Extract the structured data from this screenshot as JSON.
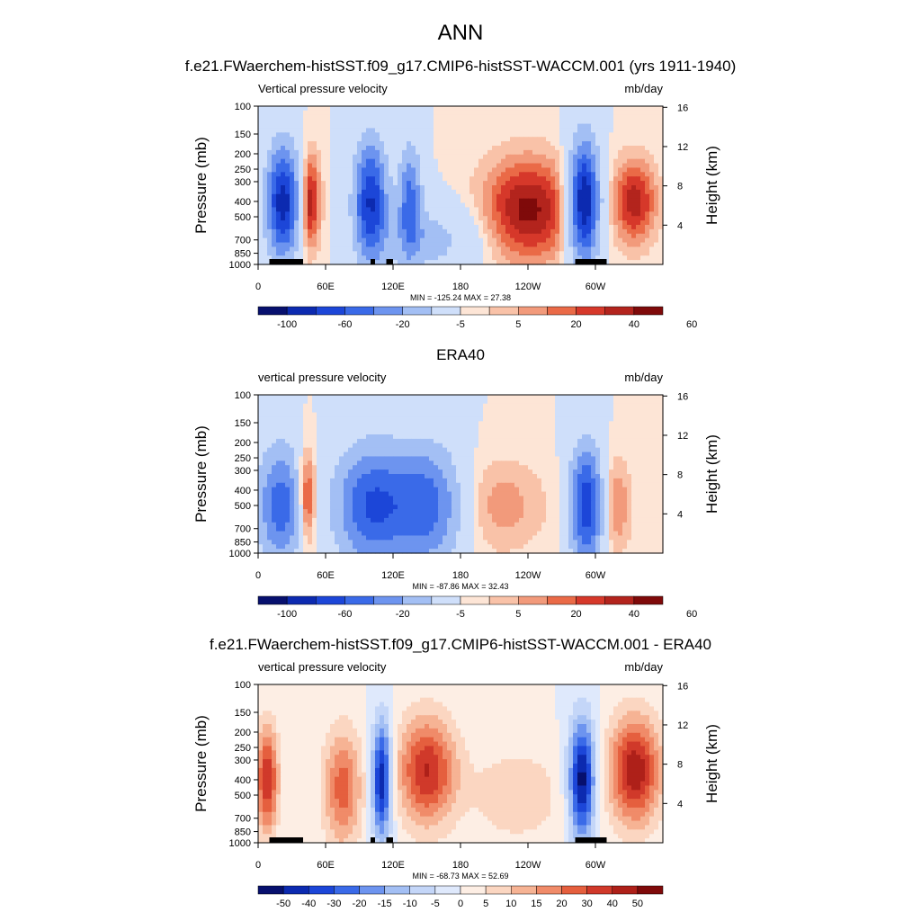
{
  "figure": {
    "title": "ANN",
    "colors": {
      "blue_red_14": [
        "#07106e",
        "#0c2ab0",
        "#1c46d8",
        "#3a6ae8",
        "#6d94ef",
        "#a3bff4",
        "#cfdffa",
        "#fde5d6",
        "#f9c2a8",
        "#f29a7b",
        "#ea6a47",
        "#d6382a",
        "#b3241d",
        "#7f0a0a"
      ],
      "land_mask": "#000000"
    }
  },
  "chart_data": [
    {
      "type": "heatmap",
      "title": "f.e21.FWaerchem-histSST.f09_g17.CMIP6-histSST-WACCM.001 (yrs 1911-1940)",
      "subtitle_left": "Vertical pressure velocity",
      "subtitle_right": "mb/day",
      "ylabel": "Pressure (mb)",
      "ylabel_right": "Height (km)",
      "x_ticks": [
        "0",
        "60E",
        "120E",
        "180",
        "120W",
        "60W"
      ],
      "x_tick_lon": [
        0,
        60,
        120,
        180,
        240,
        300
      ],
      "xlim": [
        0,
        360
      ],
      "y_ticks": [
        "100",
        "150",
        "200",
        "250",
        "300",
        "400",
        "500",
        "700",
        "850",
        "1000"
      ],
      "y_tick_p": [
        100,
        150,
        200,
        250,
        300,
        400,
        500,
        700,
        850,
        1000
      ],
      "ylim": [
        1000,
        100
      ],
      "log_y": true,
      "height_ticks": [
        "4",
        "8",
        "12",
        "16"
      ],
      "height_tick_km": [
        4,
        8,
        12,
        16
      ],
      "stats": "MIN = -125.24  MAX =  27.38",
      "min": -125.24,
      "max": 27.38,
      "colorbar_labels": [
        "-100",
        "-60",
        "-20",
        "-5",
        "5",
        "20",
        "40",
        "60"
      ],
      "colorbar_label_boundaries": [
        1,
        3,
        5,
        7,
        9,
        11,
        13,
        15
      ],
      "colorbar_bins": 14,
      "features": [
        {
          "lon": 22,
          "p": 400,
          "v": -100,
          "sx": 10,
          "sy": 0.55
        },
        {
          "lon": 45,
          "p": 400,
          "v": 27,
          "sx": 7,
          "sy": 0.5
        },
        {
          "lon": 100,
          "p": 400,
          "v": -90,
          "sx": 10,
          "sy": 0.6
        },
        {
          "lon": 135,
          "p": 400,
          "v": -60,
          "sx": 7,
          "sy": 0.55
        },
        {
          "lon": 150,
          "p": 700,
          "v": -25,
          "sx": 30,
          "sy": 0.35
        },
        {
          "lon": 240,
          "p": 450,
          "v": 25,
          "sx": 30,
          "sy": 0.55
        },
        {
          "lon": 290,
          "p": 400,
          "v": -110,
          "sx": 9,
          "sy": 0.6
        },
        {
          "lon": 335,
          "p": 400,
          "v": 22,
          "sx": 14,
          "sy": 0.45
        }
      ],
      "land_mask_lon": [
        [
          10,
          40
        ],
        [
          100,
          104
        ],
        [
          114,
          120
        ],
        [
          282,
          310
        ]
      ]
    },
    {
      "type": "heatmap",
      "title": "ERA40",
      "subtitle_left": "vertical pressure velocity",
      "subtitle_right": "mb/day",
      "ylabel": "Pressure (mb)",
      "ylabel_right": "Height (km)",
      "x_ticks": [
        "0",
        "60E",
        "120E",
        "180",
        "120W",
        "60W"
      ],
      "x_tick_lon": [
        0,
        60,
        120,
        180,
        240,
        300
      ],
      "xlim": [
        0,
        360
      ],
      "y_ticks": [
        "100",
        "150",
        "200",
        "250",
        "300",
        "400",
        "500",
        "700",
        "850",
        "1000"
      ],
      "y_tick_p": [
        100,
        150,
        200,
        250,
        300,
        400,
        500,
        700,
        850,
        1000
      ],
      "ylim": [
        1000,
        100
      ],
      "log_y": true,
      "height_ticks": [
        "4",
        "8",
        "12",
        "16"
      ],
      "height_tick_km": [
        4,
        8,
        12,
        16
      ],
      "stats": "MIN = -87.86  MAX =  32.43",
      "min": -87.86,
      "max": 32.43,
      "colorbar_labels": [
        "-100",
        "-60",
        "-20",
        "-5",
        "5",
        "20",
        "40",
        "60"
      ],
      "colorbar_label_boundaries": [
        1,
        3,
        5,
        7,
        9,
        11,
        13,
        15
      ],
      "colorbar_bins": 14,
      "features": [
        {
          "lon": 20,
          "p": 500,
          "v": -45,
          "sx": 14,
          "sy": 0.6
        },
        {
          "lon": 43,
          "p": 450,
          "v": 30,
          "sx": 6,
          "sy": 0.5
        },
        {
          "lon": 100,
          "p": 500,
          "v": -50,
          "sx": 22,
          "sy": 0.6
        },
        {
          "lon": 150,
          "p": 500,
          "v": -45,
          "sx": 22,
          "sy": 0.6
        },
        {
          "lon": 215,
          "p": 500,
          "v": 12,
          "sx": 30,
          "sy": 0.5
        },
        {
          "lon": 292,
          "p": 500,
          "v": -60,
          "sx": 10,
          "sy": 0.6
        },
        {
          "lon": 318,
          "p": 500,
          "v": 15,
          "sx": 10,
          "sy": 0.5
        }
      ],
      "land_mask_lon": []
    },
    {
      "type": "heatmap",
      "title": "f.e21.FWaerchem-histSST.f09_g17.CMIP6-histSST-WACCM.001 - ERA40",
      "subtitle_left": "vertical pressure velocity",
      "subtitle_right": "mb/day",
      "ylabel": "Pressure (mb)",
      "ylabel_right": "Height (km)",
      "x_ticks": [
        "0",
        "60E",
        "120E",
        "180",
        "120W",
        "60W"
      ],
      "x_tick_lon": [
        0,
        60,
        120,
        180,
        240,
        300
      ],
      "xlim": [
        0,
        360
      ],
      "y_ticks": [
        "100",
        "150",
        "200",
        "250",
        "300",
        "400",
        "500",
        "700",
        "850",
        "1000"
      ],
      "y_tick_p": [
        100,
        150,
        200,
        250,
        300,
        400,
        500,
        700,
        850,
        1000
      ],
      "ylim": [
        1000,
        100
      ],
      "log_y": true,
      "height_ticks": [
        "4",
        "8",
        "12",
        "16"
      ],
      "height_tick_km": [
        4,
        8,
        12,
        16
      ],
      "stats": "MIN = -68.73  MAX =  52.69",
      "min": -68.73,
      "max": 52.69,
      "colorbar_labels": [
        "-50",
        "-40",
        "-30",
        "-20",
        "-15",
        "-10",
        "-5",
        "0",
        "5",
        "10",
        "15",
        "20",
        "30",
        "40",
        "50"
      ],
      "colorbar_label_boundaries": [
        1,
        2,
        3,
        4,
        5,
        6,
        7,
        8,
        9,
        10,
        11,
        12,
        13,
        14,
        15
      ],
      "colorbar_bins": 16,
      "features": [
        {
          "lon": 8,
          "p": 400,
          "v": 40,
          "sx": 7,
          "sy": 0.55
        },
        {
          "lon": 75,
          "p": 450,
          "v": 30,
          "sx": 12,
          "sy": 0.6
        },
        {
          "lon": 110,
          "p": 400,
          "v": -60,
          "sx": 6,
          "sy": 0.6
        },
        {
          "lon": 150,
          "p": 350,
          "v": 40,
          "sx": 18,
          "sy": 0.55
        },
        {
          "lon": 230,
          "p": 500,
          "v": 12,
          "sx": 30,
          "sy": 0.5
        },
        {
          "lon": 288,
          "p": 400,
          "v": -65,
          "sx": 8,
          "sy": 0.6
        },
        {
          "lon": 335,
          "p": 350,
          "v": 45,
          "sx": 16,
          "sy": 0.55
        }
      ],
      "land_mask_lon": [
        [
          10,
          40
        ],
        [
          100,
          104
        ],
        [
          114,
          120
        ],
        [
          282,
          310
        ]
      ]
    }
  ]
}
